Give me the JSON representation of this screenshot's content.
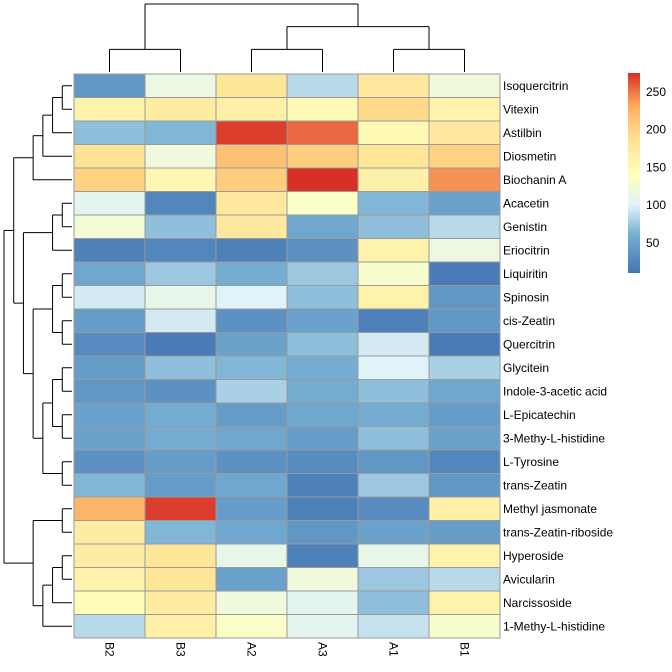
{
  "chart_data": {
    "type": "heatmap",
    "title": "",
    "xlabel": "",
    "ylabel": "",
    "columns": [
      "B2",
      "B3",
      "A2",
      "A3",
      "A1",
      "B1"
    ],
    "rows": [
      "Isoquercitrin",
      "Vitexin",
      "Astilbin",
      "Diosmetin",
      "Biochanin A",
      "Acacetin",
      "Genistin",
      "Eriocitrin",
      "Liquiritin",
      "Spinosin",
      "cis-Zeatin",
      "Quercitrin",
      "Glycitein",
      "Indole-3-acetic acid",
      "L-Epicatechin",
      "3-Methy-L-histidine",
      "L-Tyrosine",
      "trans-Zeatin",
      "Methyl jasmonate",
      "trans-Zeatin-riboside",
      "Hyperoside",
      "Avicularin",
      "Narcissoside",
      "1-Methy-L-histidine"
    ],
    "values": [
      [
        40,
        115,
        180,
        85,
        175,
        120
      ],
      [
        160,
        170,
        165,
        150,
        195,
        160
      ],
      [
        70,
        65,
        270,
        255,
        150,
        175
      ],
      [
        185,
        120,
        215,
        205,
        180,
        200
      ],
      [
        200,
        155,
        205,
        275,
        165,
        240
      ],
      [
        105,
        25,
        175,
        135,
        65,
        50
      ],
      [
        125,
        70,
        175,
        55,
        70,
        85
      ],
      [
        20,
        25,
        20,
        35,
        160,
        115
      ],
      [
        55,
        75,
        60,
        75,
        130,
        15
      ],
      [
        95,
        110,
        100,
        70,
        160,
        40
      ],
      [
        45,
        95,
        35,
        50,
        20,
        40
      ],
      [
        30,
        15,
        50,
        70,
        95,
        15
      ],
      [
        45,
        70,
        65,
        60,
        100,
        80
      ],
      [
        40,
        35,
        80,
        60,
        70,
        55
      ],
      [
        50,
        60,
        45,
        55,
        60,
        45
      ],
      [
        50,
        60,
        55,
        45,
        70,
        50
      ],
      [
        35,
        45,
        35,
        30,
        40,
        25
      ],
      [
        65,
        45,
        55,
        20,
        75,
        40
      ],
      [
        225,
        270,
        45,
        20,
        30,
        165
      ],
      [
        170,
        65,
        55,
        40,
        50,
        45
      ],
      [
        170,
        180,
        110,
        20,
        110,
        160
      ],
      [
        160,
        180,
        50,
        120,
        75,
        85
      ],
      [
        145,
        170,
        120,
        105,
        70,
        160
      ],
      [
        85,
        165,
        135,
        105,
        90,
        130
      ]
    ],
    "color_scale": {
      "min": 10,
      "max": 275,
      "stops": [
        {
          "value": 10,
          "color": "#4575b4"
        },
        {
          "value": 60,
          "color": "#74add1"
        },
        {
          "value": 100,
          "color": "#e0f3f8"
        },
        {
          "value": 140,
          "color": "#ffffbf"
        },
        {
          "value": 190,
          "color": "#fee090"
        },
        {
          "value": 230,
          "color": "#fdae61"
        },
        {
          "value": 275,
          "color": "#d73027"
        }
      ]
    },
    "legend": {
      "position": "right",
      "ticks": [
        50,
        100,
        150,
        200,
        250
      ],
      "tick_labels": [
        "50",
        "100",
        "150",
        "200",
        "250"
      ]
    },
    "row_dendrogram": [
      [
        0,
        1
      ],
      [
        -1,
        2
      ],
      [
        -2,
        3
      ],
      [
        -3,
        4
      ],
      [
        5,
        6
      ],
      [
        7,
        -5
      ],
      [
        8,
        9
      ],
      [
        10,
        11
      ],
      [
        -7,
        -8
      ],
      [
        12,
        13
      ],
      [
        14,
        15
      ],
      [
        -10,
        -11
      ],
      [
        16,
        17
      ],
      [
        -12,
        -13
      ],
      [
        -9,
        -14
      ],
      [
        -6,
        -15
      ],
      [
        -4,
        -16
      ],
      [
        18,
        19
      ],
      [
        20,
        21
      ],
      [
        -19,
        22
      ],
      [
        -20,
        23
      ],
      [
        -18,
        -21
      ],
      [
        -17,
        -22
      ]
    ],
    "col_dendrogram": [
      [
        0,
        1
      ],
      [
        2,
        3
      ],
      [
        4,
        5
      ],
      [
        -2,
        -3
      ],
      [
        -1,
        -4
      ]
    ]
  }
}
